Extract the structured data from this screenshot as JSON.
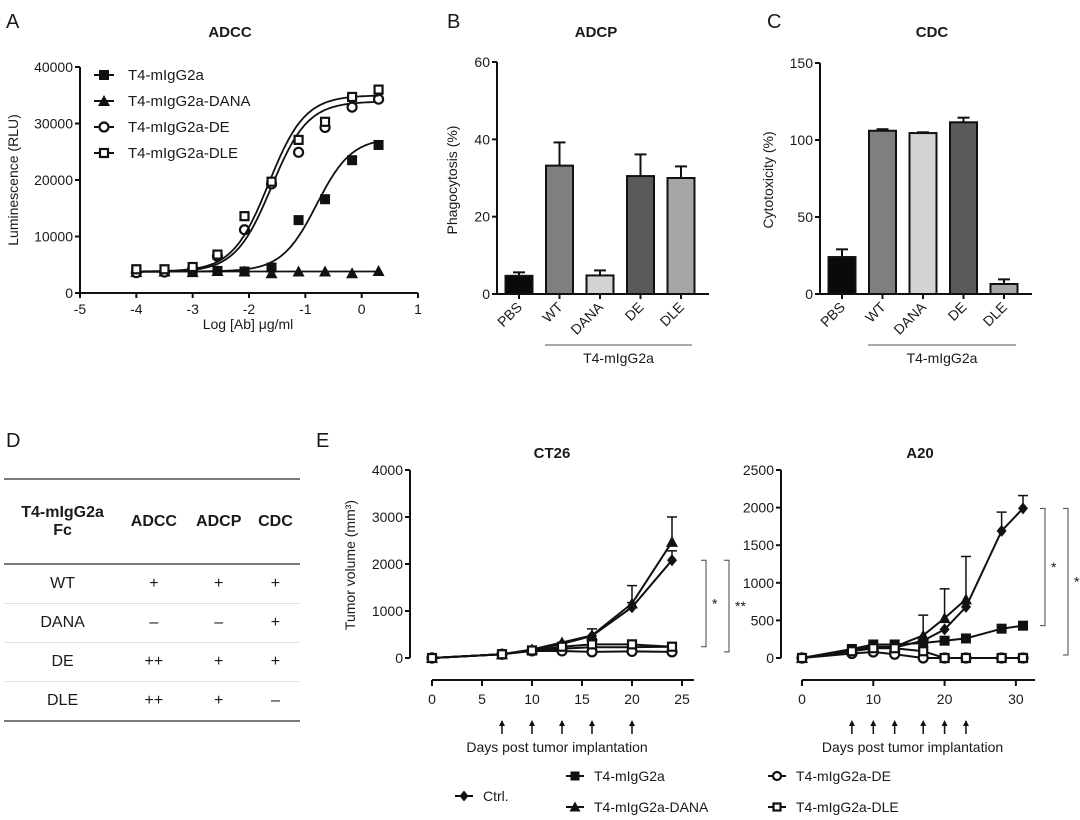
{
  "panel_labels": [
    "A",
    "B",
    "C",
    "D",
    "E"
  ],
  "chart_data": [
    {
      "id": "A",
      "type": "scatter",
      "title": "ADCC",
      "xlabel": "Log [Ab] μg/ml",
      "ylabel": "Luminescence (RLU)",
      "xlim": [
        -5,
        1
      ],
      "ylim": [
        0,
        40000
      ],
      "xticks": [
        -5,
        -4,
        -3,
        -2,
        -1,
        0,
        1
      ],
      "yticks": [
        0,
        10000,
        20000,
        30000,
        40000
      ],
      "legend_position": "top-left",
      "x": [
        -4,
        -3.5,
        -3,
        -2.56,
        -2.08,
        -1.6,
        -1.12,
        -0.65,
        -0.17,
        0.3
      ],
      "series": [
        {
          "name": "T4-mIgG2a",
          "marker": "square-filled",
          "values": [
            3900,
            3800,
            3800,
            3900,
            3800,
            4500,
            12900,
            16600,
            23500,
            26200
          ],
          "fit": {
            "bottom": 3800,
            "top": 27500,
            "logec50": -0.8,
            "hill": 1.4
          }
        },
        {
          "name": "T4-mIgG2a-DANA",
          "marker": "triangle-filled",
          "values": [
            3700,
            3800,
            3700,
            3900,
            3800,
            3500,
            3800,
            3800,
            3500,
            3900
          ],
          "fit": {
            "bottom": 3800,
            "top": 3800,
            "logec50": -1,
            "hill": 1
          }
        },
        {
          "name": "T4-mIgG2a-DE",
          "marker": "circle-open",
          "values": [
            3600,
            3700,
            4300,
            6500,
            11200,
            19300,
            24900,
            29300,
            32900,
            34300
          ],
          "fit": {
            "bottom": 3700,
            "top": 33900,
            "logec50": -1.6,
            "hill": 1.35
          }
        },
        {
          "name": "T4-mIgG2a-DLE",
          "marker": "square-open",
          "values": [
            4200,
            4200,
            4600,
            6800,
            13600,
            19700,
            27100,
            30300,
            34700,
            36000
          ],
          "fit": {
            "bottom": 3800,
            "top": 35000,
            "logec50": -1.65,
            "hill": 1.35
          }
        }
      ]
    },
    {
      "id": "B",
      "type": "bar",
      "title": "ADCP",
      "ylabel": "Phagocytosis (%)",
      "ylim": [
        0,
        60
      ],
      "yticks": [
        0,
        20,
        40,
        60
      ],
      "categories": [
        "PBS",
        "WT",
        "DANA",
        "DE",
        "DLE"
      ],
      "values": [
        4.7,
        33.2,
        4.8,
        30.5,
        30.0
      ],
      "errors": [
        0.9,
        6.0,
        1.3,
        5.6,
        3.0
      ],
      "colors": [
        "#0a0a0a",
        "#7f7f7f",
        "#d4d4d4",
        "#5a5a5a",
        "#a6a6a6"
      ],
      "group_label": "T4-mIgG2a"
    },
    {
      "id": "C",
      "type": "bar",
      "title": "CDC",
      "ylabel": "Cytotoxicity (%)",
      "ylim": [
        0,
        150
      ],
      "yticks": [
        0,
        50,
        100,
        150
      ],
      "categories": [
        "PBS",
        "WT",
        "DANA",
        "DE",
        "DLE"
      ],
      "values": [
        24,
        106,
        104.5,
        111.5,
        6.5
      ],
      "errors": [
        5,
        1,
        0.5,
        3,
        3
      ],
      "colors": [
        "#0a0a0a",
        "#7f7f7f",
        "#d4d4d4",
        "#5a5a5a",
        "#a6a6a6"
      ],
      "group_label": "T4-mIgG2a"
    },
    {
      "id": "E1",
      "type": "line",
      "title": "CT26",
      "xlabel": "Days post tumor implantation",
      "ylabel": "Tumor volume (mm³)",
      "xlim": [
        0,
        25
      ],
      "ylim": [
        0,
        4000
      ],
      "xticks": [
        0,
        5,
        10,
        15,
        20,
        25
      ],
      "yticks": [
        0,
        1000,
        2000,
        3000,
        4000
      ],
      "dosing_days": [
        7,
        10,
        13,
        16,
        20
      ],
      "x": [
        0,
        7,
        10,
        13,
        16,
        20,
        24
      ],
      "series": [
        {
          "name": "Ctrl.",
          "marker": "diamond-filled",
          "values": [
            0,
            80,
            170,
            300,
            470,
            1080,
            2080
          ],
          "errors": [
            0,
            0,
            0,
            0,
            0,
            100,
            200
          ]
        },
        {
          "name": "T4-mIgG2a",
          "marker": "square-filled",
          "values": [
            0,
            80,
            160,
            200,
            230,
            230,
            240
          ],
          "errors": [
            0,
            0,
            0,
            0,
            0,
            0,
            0
          ]
        },
        {
          "name": "T4-mIgG2a-DANA",
          "marker": "triangle-filled",
          "values": [
            0,
            80,
            180,
            330,
            480,
            1160,
            2470
          ],
          "errors": [
            0,
            0,
            0,
            0,
            140,
            380,
            530
          ]
        },
        {
          "name": "T4-mIgG2a-DE",
          "marker": "circle-open",
          "values": [
            0,
            80,
            150,
            150,
            130,
            140,
            130
          ],
          "errors": [
            0,
            0,
            0,
            0,
            0,
            0,
            0
          ]
        },
        {
          "name": "T4-mIgG2a-DLE",
          "marker": "square-open",
          "values": [
            0,
            80,
            160,
            240,
            290,
            290,
            240
          ],
          "errors": [
            0,
            0,
            0,
            0,
            0,
            0,
            0
          ]
        }
      ],
      "significance": [
        {
          "label": "*",
          "from": 2080,
          "to": 240
        },
        {
          "label": "**",
          "from": 2080,
          "to": 130
        }
      ]
    },
    {
      "id": "E2",
      "type": "line",
      "title": "A20",
      "xlabel": "Days post tumor implantation",
      "ylabel": "",
      "xlim": [
        0,
        31
      ],
      "ylim": [
        0,
        2500
      ],
      "xticks": [
        0,
        10,
        20,
        30
      ],
      "yticks": [
        0,
        500,
        1000,
        1500,
        2000,
        2500
      ],
      "dosing_days": [
        7,
        10,
        13,
        17,
        20,
        23
      ],
      "x": [
        0,
        7,
        10,
        13,
        17,
        20,
        23,
        28,
        31
      ],
      "series": [
        {
          "name": "Ctrl.",
          "marker": "diamond-filled",
          "values": [
            0,
            100,
            140,
            140,
            230,
            380,
            680,
            1690,
            1990
          ],
          "errors": [
            0,
            0,
            0,
            0,
            0,
            0,
            0,
            250,
            170
          ]
        },
        {
          "name": "T4-mIgG2a",
          "marker": "square-filled",
          "values": [
            0,
            120,
            180,
            180,
            200,
            230,
            260,
            390,
            430
          ],
          "errors": [
            0,
            0,
            0,
            0,
            0,
            0,
            0,
            0,
            0
          ]
        },
        {
          "name": "T4-mIgG2a-DANA",
          "marker": "triangle-filled",
          "values": [
            0,
            110,
            150,
            150,
            300,
            530,
            780,
            null,
            null
          ],
          "errors": [
            0,
            0,
            0,
            0,
            270,
            390,
            570,
            0,
            0
          ]
        },
        {
          "name": "T4-mIgG2a-DE",
          "marker": "circle-open",
          "values": [
            0,
            60,
            80,
            50,
            0,
            0,
            0,
            0,
            0
          ],
          "errors": [
            0,
            0,
            0,
            0,
            0,
            0,
            0,
            0,
            0
          ]
        },
        {
          "name": "T4-mIgG2a-DLE",
          "marker": "square-open",
          "values": [
            0,
            90,
            130,
            130,
            90,
            0,
            0,
            0,
            0
          ],
          "errors": [
            0,
            0,
            0,
            0,
            0,
            0,
            0,
            0,
            0
          ]
        }
      ],
      "significance": [
        {
          "label": "*",
          "from": 1990,
          "to": 430
        },
        {
          "label": "**",
          "from": 1990,
          "to": 40
        }
      ]
    }
  ],
  "table_D": {
    "headers": [
      "T4-mIgG2a\nFc",
      "ADCC",
      "ADCP",
      "CDC"
    ],
    "header_line1": "T4-mIgG2a",
    "header_line2": "Fc",
    "rows": [
      [
        "WT",
        "+",
        "+",
        "+"
      ],
      [
        "DANA",
        "–",
        "–",
        "+"
      ],
      [
        "DE",
        "++",
        "+",
        "+"
      ],
      [
        "DLE",
        "++",
        "+",
        "–"
      ]
    ]
  },
  "legend_E": [
    {
      "name": "Ctrl.",
      "marker": "diamond-filled"
    },
    {
      "name": "T4-mIgG2a",
      "marker": "square-filled"
    },
    {
      "name": "T4-mIgG2a-DANA",
      "marker": "triangle-filled"
    },
    {
      "name": "T4-mIgG2a-DE",
      "marker": "circle-open"
    },
    {
      "name": "T4-mIgG2a-DLE",
      "marker": "square-open"
    }
  ]
}
